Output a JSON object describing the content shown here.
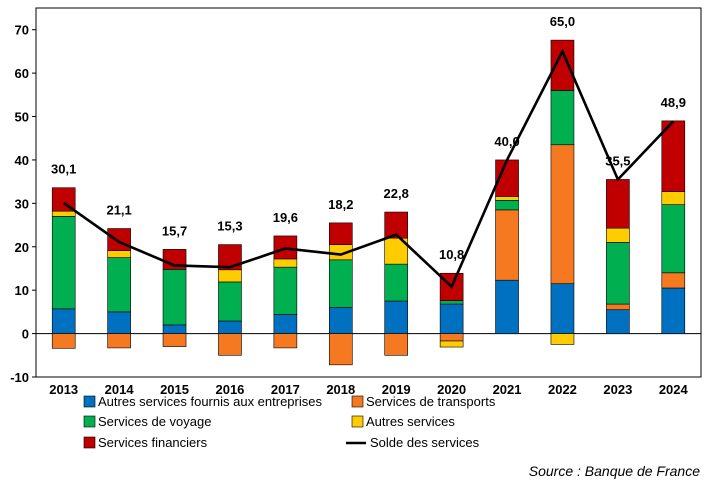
{
  "chart_data": {
    "type": "bar",
    "stacked": true,
    "categories": [
      "2013",
      "2014",
      "2015",
      "2016",
      "2017",
      "2018",
      "2019",
      "2020",
      "2021",
      "2022",
      "2023",
      "2024"
    ],
    "ylim": [
      -10,
      75
    ],
    "yticks": [
      -10,
      0,
      10,
      20,
      30,
      40,
      50,
      60,
      70
    ],
    "grid": false,
    "legend_position": "bottom",
    "series": [
      {
        "name": "Autres services fournis aux entreprises",
        "color": "#0070C0",
        "values": [
          5.7,
          5.0,
          2.0,
          2.9,
          4.4,
          6.0,
          7.5,
          6.8,
          12.3,
          11.5,
          5.5,
          10.5
        ]
      },
      {
        "name": "Services de transports",
        "color": "#F47920",
        "values": [
          -3.4,
          -3.3,
          -3.0,
          -5.0,
          -3.3,
          -7.2,
          -5.0,
          -1.7,
          16.2,
          32.0,
          1.3,
          3.5
        ]
      },
      {
        "name": "Services de voyage",
        "color": "#00B050",
        "values": [
          21.3,
          12.5,
          12.8,
          9.0,
          10.9,
          11.0,
          8.5,
          0.8,
          2.2,
          12.5,
          14.2,
          15.7
        ]
      },
      {
        "name": "Autres services",
        "color": "#FFCC00",
        "values": [
          1.2,
          1.6,
          0.0,
          2.8,
          1.9,
          3.5,
          6.0,
          -1.4,
          0.9,
          -2.5,
          3.3,
          3.0
        ]
      },
      {
        "name": "Services financiers",
        "color": "#C00000",
        "values": [
          5.4,
          5.1,
          4.6,
          5.8,
          5.3,
          5.0,
          6.0,
          6.3,
          8.4,
          11.6,
          11.2,
          16.3
        ]
      }
    ],
    "line": {
      "name": "Solde des services",
      "color": "#000000",
      "values": [
        30.1,
        21.1,
        15.7,
        15.3,
        19.6,
        18.2,
        22.8,
        10.8,
        40.0,
        65.0,
        35.5,
        48.9
      ],
      "labels": [
        "30,1",
        "21,1",
        "15,7",
        "15,3",
        "19,6",
        "18,2",
        "22,8",
        "10,8",
        "40,0",
        "65,0",
        "35,5",
        "48,9"
      ]
    }
  },
  "source": "Source : Banque de France"
}
